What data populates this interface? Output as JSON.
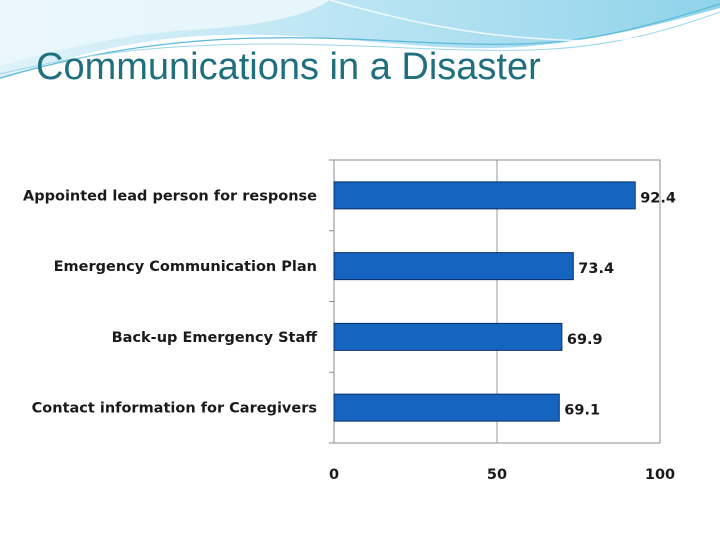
{
  "slide": {
    "title": "Communications in a Disaster"
  },
  "colors": {
    "title": "#1f6f7e",
    "bar_fill": "#1565c0",
    "bar_stroke": "#0b2f66",
    "banner_light": "#bfe6f3",
    "banner_mid": "#8fd3ea"
  },
  "chart_data": {
    "type": "bar",
    "orientation": "horizontal",
    "title": "",
    "xlabel": "",
    "ylabel": "",
    "categories": [
      "Appointed lead person for response",
      "Emergency Communication Plan",
      "Back-up Emergency Staff",
      "Contact information for Caregivers"
    ],
    "values": [
      92.4,
      73.4,
      69.9,
      69.1
    ],
    "xlim": [
      0,
      100
    ],
    "xticks": [
      0,
      50,
      100
    ],
    "grid": true,
    "legend": "none"
  }
}
